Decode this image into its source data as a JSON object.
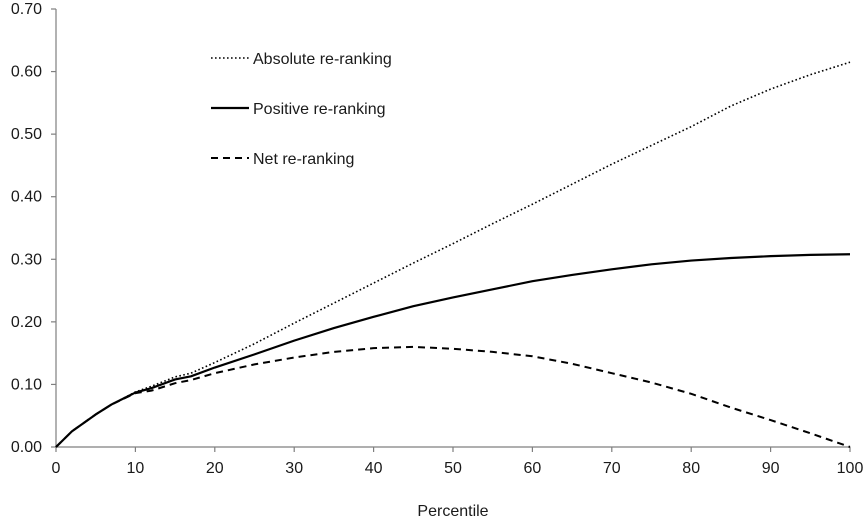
{
  "chart_data": {
    "type": "line",
    "xlabel": "Percentile",
    "ylabel": "",
    "xlim": [
      0,
      100
    ],
    "ylim": [
      0,
      0.7
    ],
    "x_ticks": [
      0,
      10,
      20,
      30,
      40,
      50,
      60,
      70,
      80,
      90,
      100
    ],
    "y_ticks": [
      0,
      0.1,
      0.2,
      0.3,
      0.4,
      0.5,
      0.6,
      0.7
    ],
    "x_tick_labels": [
      "0",
      "10",
      "20",
      "30",
      "40",
      "50",
      "60",
      "70",
      "80",
      "90",
      "100"
    ],
    "y_tick_labels": [
      "0.00",
      "0.10",
      "0.20",
      "0.30",
      "0.40",
      "0.50",
      "0.60",
      "0.70"
    ],
    "grid": false,
    "legend_position": "top-left",
    "series": [
      {
        "name": "Absolute re-ranking",
        "style": "dotted",
        "color": "#000000",
        "x": [
          0,
          2,
          5,
          7,
          10,
          12,
          15,
          17,
          20,
          25,
          30,
          35,
          40,
          45,
          50,
          55,
          60,
          65,
          70,
          75,
          80,
          85,
          90,
          95,
          100
        ],
        "y": [
          0,
          0.025,
          0.052,
          0.068,
          0.088,
          0.097,
          0.112,
          0.118,
          0.135,
          0.165,
          0.198,
          0.23,
          0.262,
          0.294,
          0.325,
          0.357,
          0.388,
          0.42,
          0.452,
          0.482,
          0.512,
          0.545,
          0.572,
          0.595,
          0.615
        ]
      },
      {
        "name": "Positive re-ranking",
        "style": "solid",
        "color": "#000000",
        "x": [
          0,
          2,
          5,
          7,
          10,
          12,
          15,
          17,
          20,
          25,
          30,
          35,
          40,
          45,
          50,
          55,
          60,
          65,
          70,
          75,
          80,
          85,
          90,
          95,
          100
        ],
        "y": [
          0,
          0.025,
          0.052,
          0.068,
          0.087,
          0.094,
          0.108,
          0.113,
          0.127,
          0.148,
          0.17,
          0.19,
          0.208,
          0.225,
          0.239,
          0.252,
          0.265,
          0.275,
          0.284,
          0.292,
          0.298,
          0.302,
          0.305,
          0.307,
          0.308
        ]
      },
      {
        "name": "Net re-ranking",
        "style": "dashed",
        "color": "#000000",
        "x": [
          0,
          2,
          5,
          7,
          10,
          12,
          15,
          17,
          20,
          25,
          30,
          35,
          40,
          45,
          50,
          55,
          60,
          65,
          70,
          75,
          80,
          85,
          90,
          95,
          100
        ],
        "y": [
          0,
          0.025,
          0.052,
          0.068,
          0.086,
          0.09,
          0.102,
          0.107,
          0.118,
          0.132,
          0.143,
          0.152,
          0.158,
          0.16,
          0.157,
          0.152,
          0.145,
          0.133,
          0.118,
          0.103,
          0.085,
          0.063,
          0.043,
          0.022,
          0.0
        ]
      }
    ]
  }
}
